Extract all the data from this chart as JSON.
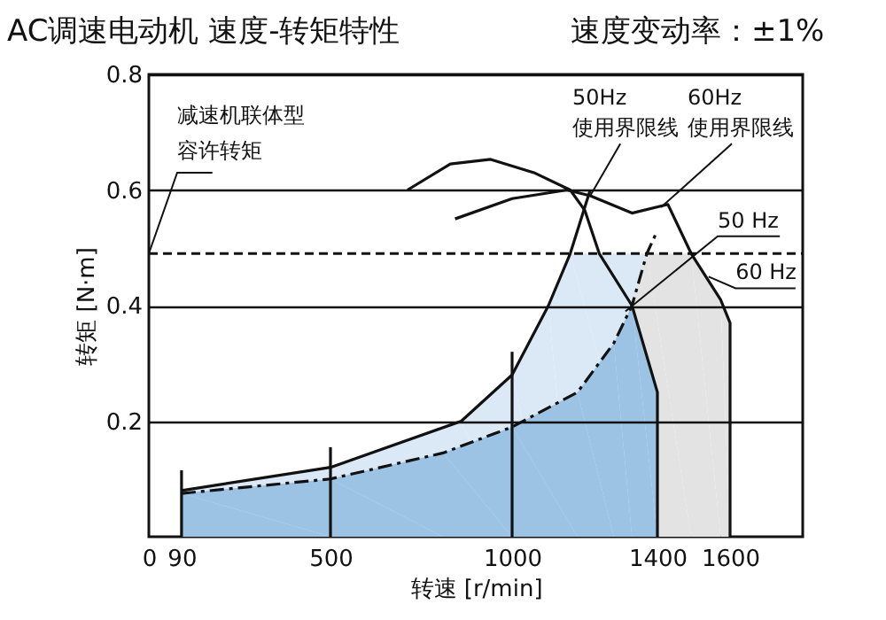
{
  "chart_data": {
    "type": "line",
    "title": "AC调速电动机 速度-转矩特性",
    "subtitle": "速度变动率：±1%",
    "xlabel": "转速 [r/min]",
    "ylabel": "转矩 [N·m]",
    "xlim": [
      0,
      1800
    ],
    "ylim": [
      0,
      0.8
    ],
    "xticks": [
      0,
      90,
      500,
      1000,
      1400,
      1600
    ],
    "yticks": [
      0.2,
      0.4,
      0.6,
      0.8
    ],
    "grid": "y",
    "series": [
      {
        "type": "area",
        "color": "#dbe9f6",
        "x": [
          90,
          500,
          860,
          1000,
          1100,
          1160,
          1371
        ],
        "values": [
          0.08,
          0.12,
          0.2,
          0.28,
          0.4,
          0.49,
          0.49
        ]
      },
      {
        "type": "area",
        "color": "#e3e3e3",
        "x": [
          1330,
          1371,
          1493,
          1574,
          1600
        ],
        "values": [
          0.4,
          0.49,
          0.49,
          0.41,
          0.37
        ]
      },
      {
        "type": "area",
        "color": "#9dc3e4",
        "x": [
          90,
          500,
          810,
          1000,
          1180,
          1280,
          1330,
          1400
        ],
        "values": [
          0.075,
          0.1,
          0.145,
          0.19,
          0.25,
          0.335,
          0.4,
          0.25
        ]
      },
      {
        "color": "#111111",
        "line_style": "solid",
        "x": [
          90,
          500,
          860,
          1000,
          1100,
          1160,
          1200,
          1215
        ],
        "values": [
          0.08,
          0.12,
          0.2,
          0.28,
          0.4,
          0.49,
          0.57,
          0.6
        ]
      },
      {
        "color": "#111111",
        "line_style": "dashed",
        "x": [
          90,
          500,
          810,
          1000,
          1180,
          1280,
          1330,
          1371,
          1400
        ],
        "values": [
          0.075,
          0.1,
          0.145,
          0.19,
          0.25,
          0.335,
          0.4,
          0.49,
          0.53
        ]
      },
      {
        "color": "#111111",
        "line_style": "solid",
        "x": [
          712,
          830,
          941,
          1060,
          1160,
          1200,
          1240,
          1330,
          1400,
          1400
        ],
        "values": [
          0.6,
          0.645,
          0.653,
          0.63,
          0.6,
          0.565,
          0.49,
          0.4,
          0.25,
          0
        ]
      },
      {
        "color": "#111111",
        "line_style": "solid",
        "x": [
          843,
          1000,
          1151,
          1215,
          1330,
          1429,
          1493,
          1574,
          1600,
          1600
        ],
        "values": [
          0.55,
          0.585,
          0.6,
          0.59,
          0.56,
          0.575,
          0.49,
          0.41,
          0.37,
          0
        ]
      },
      {
        "color": "#111111",
        "line_style": "solid",
        "x": [
          90,
          90
        ],
        "values": [
          0,
          0.115
        ]
      },
      {
        "color": "#111111",
        "line_style": "solid",
        "x": [
          500,
          500
        ],
        "values": [
          0,
          0.155
        ]
      },
      {
        "color": "#111111",
        "line_style": "solid",
        "x": [
          1000,
          1000
        ],
        "values": [
          0,
          0.32
        ]
      }
    ],
    "ref_lines": [
      {
        "axis": "y",
        "value": 0.49,
        "line_style": "dashed",
        "color": "#111111"
      }
    ],
    "annotations": [
      "减速机联体型",
      {
        "text": "容许转矩",
        "x": 0,
        "y": 0.49
      },
      "50Hz",
      {
        "text": "使用界限线",
        "x": 1215,
        "y": 0.59
      },
      "60Hz",
      {
        "text": "使用界限线",
        "x": 1410,
        "y": 0.57
      },
      {
        "text": "50 Hz",
        "x": 1312,
        "y": 0.39
      },
      {
        "text": "60 Hz",
        "x": 1541,
        "y": 0.45
      }
    ]
  }
}
